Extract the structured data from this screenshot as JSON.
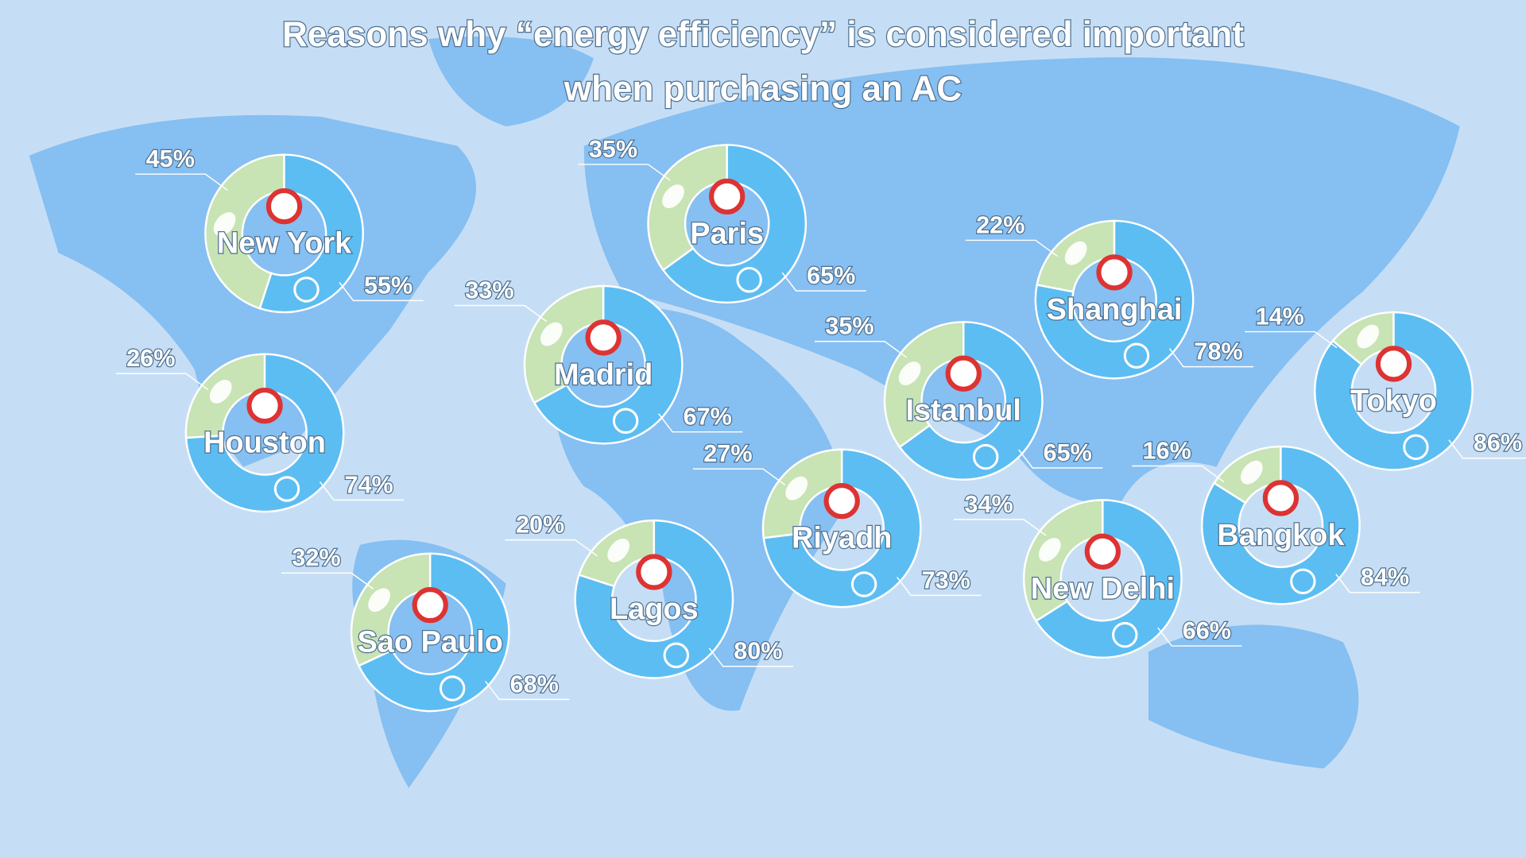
{
  "title": [
    "Reasons why “energy efficiency” is considered important",
    "when purchasing an AC"
  ],
  "chart_data": [
    {
      "type": "donut",
      "title": "New York",
      "values": [
        45,
        55
      ],
      "value_labels": [
        "45%",
        "55%"
      ],
      "colors": [
        "#c8e3b4",
        "#5cbdf2"
      ]
    },
    {
      "type": "donut",
      "title": "Paris",
      "values": [
        35,
        65
      ],
      "value_labels": [
        "35%",
        "65%"
      ],
      "colors": [
        "#c8e3b4",
        "#5cbdf2"
      ]
    },
    {
      "type": "donut",
      "title": "Madrid",
      "values": [
        33,
        67
      ],
      "value_labels": [
        "33%",
        "67%"
      ],
      "colors": [
        "#c8e3b4",
        "#5cbdf2"
      ]
    },
    {
      "type": "donut",
      "title": "Shanghai",
      "values": [
        22,
        78
      ],
      "value_labels": [
        "22%",
        "78%"
      ],
      "colors": [
        "#c8e3b4",
        "#5cbdf2"
      ]
    },
    {
      "type": "donut",
      "title": "Istanbul",
      "values": [
        35,
        65
      ],
      "value_labels": [
        "35%",
        "65%"
      ],
      "colors": [
        "#c8e3b4",
        "#5cbdf2"
      ]
    },
    {
      "type": "donut",
      "title": "Tokyo",
      "values": [
        14,
        86
      ],
      "value_labels": [
        "14%",
        "86%"
      ],
      "colors": [
        "#c8e3b4",
        "#5cbdf2"
      ]
    },
    {
      "type": "donut",
      "title": "Houston",
      "values": [
        26,
        74
      ],
      "value_labels": [
        "26%",
        "74%"
      ],
      "colors": [
        "#c8e3b4",
        "#5cbdf2"
      ]
    },
    {
      "type": "donut",
      "title": "Riyadh",
      "values": [
        27,
        73
      ],
      "value_labels": [
        "27%",
        "73%"
      ],
      "colors": [
        "#c8e3b4",
        "#5cbdf2"
      ]
    },
    {
      "type": "donut",
      "title": "Bangkok",
      "values": [
        16,
        84
      ],
      "value_labels": [
        "16%",
        "84%"
      ],
      "colors": [
        "#c8e3b4",
        "#5cbdf2"
      ]
    },
    {
      "type": "donut",
      "title": "New Delhi",
      "values": [
        34,
        66
      ],
      "value_labels": [
        "34%",
        "66%"
      ],
      "colors": [
        "#c8e3b4",
        "#5cbdf2"
      ]
    },
    {
      "type": "donut",
      "title": "Lagos",
      "values": [
        20,
        80
      ],
      "value_labels": [
        "20%",
        "80%"
      ],
      "colors": [
        "#c8e3b4",
        "#5cbdf2"
      ]
    },
    {
      "type": "donut",
      "title": "Sao Paulo",
      "values": [
        32,
        68
      ],
      "value_labels": [
        "32%",
        "68%"
      ],
      "colors": [
        "#c8e3b4",
        "#5cbdf2"
      ]
    }
  ]
}
